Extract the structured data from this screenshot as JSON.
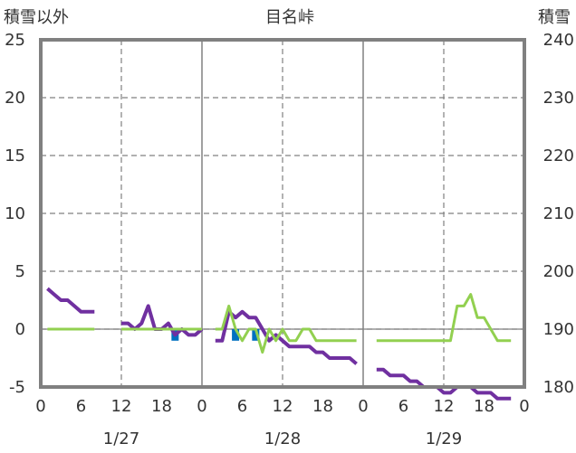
{
  "chart_data": {
    "type": "line",
    "title": "目名峠",
    "left_axis_label": "積雪以外",
    "right_axis_label": "積雪",
    "left_ylim": [
      -5,
      25
    ],
    "right_ylim": [
      180,
      240
    ],
    "left_yticks": [
      "-5",
      "0",
      "5",
      "10",
      "15",
      "20",
      "25"
    ],
    "right_yticks": [
      "180",
      "190",
      "200",
      "210",
      "220",
      "230",
      "240"
    ],
    "xlim": [
      0,
      72
    ],
    "xtick_labels": [
      "0",
      "6",
      "12",
      "18",
      "0",
      "6",
      "12",
      "18",
      "0",
      "6",
      "12",
      "18",
      "0"
    ],
    "date_labels": [
      "1/27",
      "1/28",
      "1/29"
    ],
    "grid": true,
    "colors": {
      "snow_depth": "#7030a0",
      "temperature": "#92d050",
      "precipitation": "#0070c0",
      "axis": "#808080",
      "grid": "#808080"
    },
    "series": [
      {
        "key": "snow_depth",
        "axis": "right",
        "segments": [
          [
            [
              1,
              197
            ],
            [
              2,
              196
            ],
            [
              3,
              195
            ],
            [
              4,
              195
            ],
            [
              5,
              194
            ],
            [
              6,
              193
            ],
            [
              7,
              193
            ],
            [
              8,
              193
            ]
          ],
          [
            [
              12,
              191
            ],
            [
              13,
              191
            ],
            [
              14,
              190
            ],
            [
              15,
              191
            ],
            [
              16,
              194
            ],
            [
              17,
              190
            ],
            [
              18,
              190
            ],
            [
              19,
              191
            ],
            [
              20,
              189
            ],
            [
              21,
              190
            ],
            [
              22,
              189
            ],
            [
              23,
              189
            ],
            [
              24,
              190
            ]
          ],
          [
            [
              26,
              188
            ],
            [
              27,
              188
            ],
            [
              28,
              193
            ],
            [
              29,
              192
            ],
            [
              30,
              193
            ],
            [
              31,
              192
            ],
            [
              32,
              192
            ],
            [
              33,
              190
            ],
            [
              34,
              188
            ],
            [
              35,
              189
            ],
            [
              36,
              188
            ],
            [
              37,
              187
            ],
            [
              38,
              187
            ],
            [
              39,
              187
            ],
            [
              40,
              187
            ],
            [
              41,
              186
            ],
            [
              42,
              186
            ],
            [
              43,
              185
            ],
            [
              44,
              185
            ],
            [
              45,
              185
            ],
            [
              46,
              185
            ],
            [
              47,
              184
            ]
          ],
          [
            [
              50,
              183
            ],
            [
              51,
              183
            ],
            [
              52,
              182
            ],
            [
              53,
              182
            ],
            [
              54,
              182
            ],
            [
              55,
              181
            ],
            [
              56,
              181
            ],
            [
              57,
              180
            ],
            [
              58,
              180
            ],
            [
              59,
              180
            ],
            [
              60,
              179
            ],
            [
              61,
              179
            ],
            [
              62,
              180
            ],
            [
              63,
              180
            ],
            [
              64,
              180
            ],
            [
              65,
              179
            ],
            [
              66,
              179
            ],
            [
              67,
              179
            ],
            [
              68,
              178
            ],
            [
              69,
              178
            ],
            [
              70,
              178
            ]
          ]
        ]
      },
      {
        "key": "temperature",
        "axis": "left",
        "segments": [
          [
            [
              1,
              0
            ],
            [
              8,
              0
            ]
          ],
          [
            [
              12,
              0
            ],
            [
              24,
              0
            ]
          ],
          [
            [
              26,
              0
            ],
            [
              27,
              0
            ],
            [
              28,
              2
            ],
            [
              29,
              0
            ],
            [
              30,
              -1
            ],
            [
              31,
              0
            ],
            [
              32,
              0
            ],
            [
              33,
              -2
            ],
            [
              34,
              0
            ],
            [
              35,
              -1
            ],
            [
              36,
              0
            ],
            [
              37,
              -1
            ],
            [
              38,
              -1
            ],
            [
              39,
              0
            ],
            [
              40,
              0
            ],
            [
              41,
              -1
            ],
            [
              47,
              -1
            ]
          ],
          [
            [
              50,
              -1
            ],
            [
              61,
              -1
            ],
            [
              62,
              2
            ],
            [
              63,
              2
            ],
            [
              64,
              3
            ],
            [
              65,
              1
            ],
            [
              66,
              1
            ],
            [
              67,
              0
            ],
            [
              68,
              -1
            ],
            [
              70,
              -1
            ]
          ]
        ]
      }
    ],
    "precip_bars": [
      [
        20,
        -1
      ],
      [
        29,
        -1
      ],
      [
        32,
        -1
      ]
    ]
  }
}
